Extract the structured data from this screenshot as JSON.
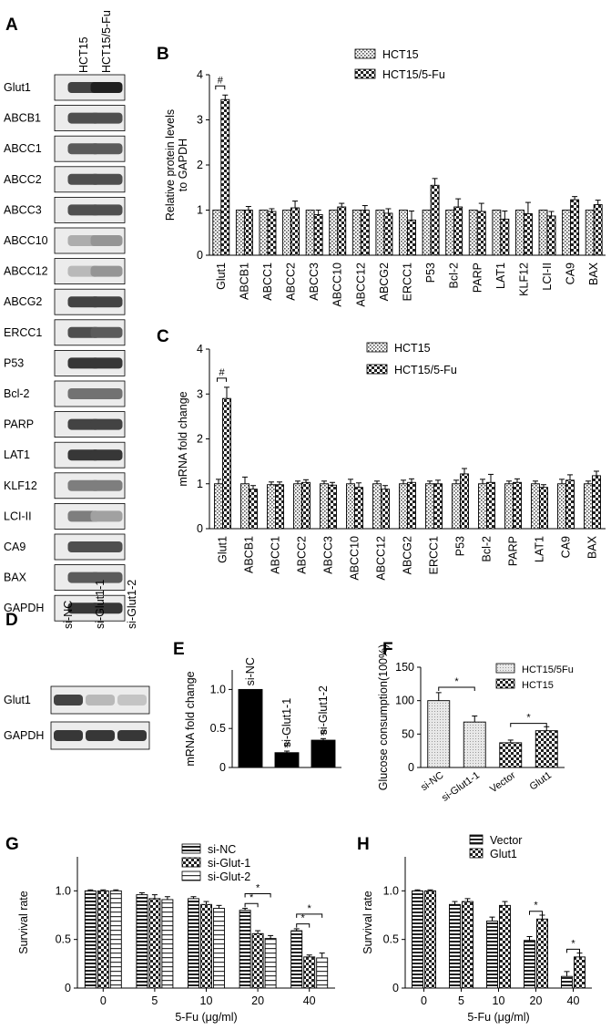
{
  "panels": {
    "A": "A",
    "B": "B",
    "C": "C",
    "D": "D",
    "E": "E",
    "F": "F",
    "G": "G",
    "H": "H"
  },
  "blot_A": {
    "columns": [
      "HCT15",
      "HCT15/5-Fu"
    ],
    "rows": [
      {
        "label": "Glut1",
        "i": [
          0.8,
          0.95
        ]
      },
      {
        "label": "ABCB1",
        "i": [
          0.75,
          0.75
        ]
      },
      {
        "label": "ABCC1",
        "i": [
          0.7,
          0.7
        ]
      },
      {
        "label": "ABCC2",
        "i": [
          0.75,
          0.75
        ]
      },
      {
        "label": "ABCC3",
        "i": [
          0.75,
          0.75
        ]
      },
      {
        "label": "ABCC10",
        "i": [
          0.35,
          0.45
        ]
      },
      {
        "label": "ABCC12",
        "i": [
          0.3,
          0.45
        ]
      },
      {
        "label": "ABCG2",
        "i": [
          0.8,
          0.8
        ]
      },
      {
        "label": "ERCC1",
        "i": [
          0.75,
          0.7
        ]
      },
      {
        "label": "P53",
        "i": [
          0.85,
          0.85
        ]
      },
      {
        "label": "Bcl-2",
        "i": [
          0.6,
          0.6
        ]
      },
      {
        "label": "PARP",
        "i": [
          0.8,
          0.8
        ]
      },
      {
        "label": "LAT1",
        "i": [
          0.85,
          0.85
        ]
      },
      {
        "label": "KLF12",
        "i": [
          0.55,
          0.55
        ]
      },
      {
        "label": "LCI-II",
        "i": [
          0.55,
          0.4
        ]
      },
      {
        "label": "CA9",
        "i": [
          0.75,
          0.75
        ]
      },
      {
        "label": "BAX",
        "i": [
          0.7,
          0.7
        ]
      },
      {
        "label": "GAPDH",
        "i": [
          0.85,
          0.85
        ]
      }
    ]
  },
  "blot_D": {
    "columns": [
      "si-NC",
      "si-Glut1-1",
      "si-Glut1-2"
    ],
    "rows": [
      {
        "label": "Glut1",
        "i": [
          0.8,
          0.3,
          0.25
        ]
      },
      {
        "label": "GAPDH",
        "i": [
          0.85,
          0.85,
          0.85
        ]
      }
    ]
  },
  "chart_data": [
    {
      "id": "B",
      "type": "bar",
      "ylabel": "Relative protein levels to GAPDH",
      "ylim": [
        0,
        4
      ],
      "yticks": [
        0,
        1,
        2,
        3,
        4
      ],
      "categories": [
        "Glut1",
        "ABCB1",
        "ABCC1",
        "ABCC2",
        "ABCC3",
        "ABCC10",
        "ABCC12",
        "ABCG2",
        "ERCC1",
        "P53",
        "Bcl-2",
        "PARP",
        "LAT1",
        "KLF12",
        "LCI-II",
        "CA9",
        "BAX"
      ],
      "series": [
        {
          "name": "HCT15",
          "values": [
            1,
            1,
            1,
            1,
            1,
            1,
            1,
            1,
            1,
            1,
            1,
            1,
            1,
            1,
            1,
            1,
            1
          ],
          "errors": [
            0,
            0,
            0,
            0,
            0,
            0,
            0,
            0,
            0,
            0,
            0,
            0,
            0,
            0,
            0,
            0,
            0
          ]
        },
        {
          "name": "HCT15/5-Fu",
          "values": [
            3.45,
            1.0,
            0.97,
            1.05,
            0.9,
            1.07,
            1.0,
            0.93,
            0.78,
            1.55,
            1.07,
            0.97,
            0.8,
            0.92,
            0.87,
            1.23,
            1.12
          ],
          "errors": [
            0.1,
            0.08,
            0.06,
            0.15,
            0.1,
            0.08,
            0.1,
            0.1,
            0.2,
            0.15,
            0.18,
            0.18,
            0.18,
            0.25,
            0.1,
            0.07,
            0.1
          ]
        }
      ],
      "annotations": [
        {
          "text": "#",
          "category": "Glut1"
        }
      ],
      "legend": "top-right"
    },
    {
      "id": "C",
      "type": "bar",
      "ylabel": "mRNA fold change",
      "ylim": [
        0,
        4
      ],
      "yticks": [
        0,
        1,
        2,
        3,
        4
      ],
      "categories": [
        "Glut1",
        "ABCB1",
        "ABCC1",
        "ABCC2",
        "ABCC3",
        "ABCC10",
        "ABCC12",
        "ABCG2",
        "ERCC1",
        "P53",
        "Bcl-2",
        "PARP",
        "LAT1",
        "CA9",
        "BAX"
      ],
      "series": [
        {
          "name": "HCT15",
          "values": [
            1.0,
            1.0,
            0.98,
            1.0,
            1.0,
            1.0,
            1.0,
            1.0,
            1.0,
            1.0,
            1.0,
            1.0,
            1.0,
            1.0,
            1.0
          ],
          "errors": [
            0.1,
            0.15,
            0.06,
            0.06,
            0.06,
            0.1,
            0.06,
            0.08,
            0.06,
            0.08,
            0.1,
            0.06,
            0.06,
            0.1,
            0.06
          ]
        },
        {
          "name": "HCT15/5-Fu",
          "values": [
            2.9,
            0.88,
            0.98,
            1.03,
            0.97,
            0.92,
            0.88,
            1.03,
            1.0,
            1.22,
            1.03,
            1.03,
            0.92,
            1.08,
            1.18
          ],
          "errors": [
            0.25,
            0.08,
            0.06,
            0.06,
            0.06,
            0.1,
            0.08,
            0.08,
            0.08,
            0.12,
            0.18,
            0.08,
            0.06,
            0.12,
            0.1
          ]
        }
      ],
      "annotations": [
        {
          "text": "#",
          "category": "Glut1"
        }
      ],
      "legend": "top-right"
    },
    {
      "id": "E",
      "type": "bar",
      "ylabel": "mRNA fold change",
      "ylim": [
        0,
        1.25
      ],
      "yticks": [
        0,
        0.5,
        1.0
      ],
      "tick_labels": [
        "0",
        "0.5",
        "1.0"
      ],
      "categories": [
        "si-NC",
        "si-Glut1-1",
        "si-Glut1-2"
      ],
      "series": [
        {
          "name": "",
          "values": [
            1.0,
            0.19,
            0.35
          ],
          "errors": [
            0,
            0.02,
            0.02
          ]
        }
      ],
      "annotations": [
        {
          "text": "#",
          "category": "si-Glut1-1"
        },
        {
          "text": "#",
          "category": "si-Glut1-2"
        }
      ]
    },
    {
      "id": "F",
      "type": "bar",
      "ylabel": "Glucose consumption(100%)",
      "ylim": [
        0,
        150
      ],
      "yticks": [
        0,
        50,
        100,
        150
      ],
      "categories": [
        "si-NC",
        "si-Glut1-1",
        "Vector",
        "Glut1"
      ],
      "series": [
        {
          "name": "HCT15/5Fu",
          "values": [
            100,
            68,
            null,
            null
          ],
          "errors": [
            12,
            9,
            0,
            0
          ]
        },
        {
          "name": "HCT15",
          "values": [
            null,
            null,
            37,
            55
          ],
          "errors": [
            0,
            0,
            4,
            6
          ]
        }
      ],
      "annotations": [
        {
          "text": "*",
          "between": [
            "si-NC",
            "si-Glut1-1"
          ]
        },
        {
          "text": "*",
          "between": [
            "Vector",
            "Glut1"
          ]
        }
      ],
      "legend": "top-right"
    },
    {
      "id": "G",
      "type": "bar",
      "xlabel": "5-Fu (μg/ml)",
      "ylabel": "Survival rate",
      "ylim": [
        0,
        1.35
      ],
      "yticks": [
        0,
        0.5,
        1.0
      ],
      "tick_labels": [
        "0",
        "0.5",
        "1.0"
      ],
      "categories": [
        "0",
        "5",
        "10",
        "20",
        "40"
      ],
      "series": [
        {
          "name": "si-NC",
          "values": [
            1.0,
            0.96,
            0.92,
            0.8,
            0.59
          ],
          "errors": [
            0.01,
            0.02,
            0.02,
            0.02,
            0.02
          ]
        },
        {
          "name": "si-Glut-1",
          "values": [
            1.0,
            0.92,
            0.86,
            0.56,
            0.32
          ],
          "errors": [
            0.01,
            0.04,
            0.03,
            0.03,
            0.02
          ]
        },
        {
          "name": "si-Glut-2",
          "values": [
            1.0,
            0.91,
            0.82,
            0.51,
            0.31
          ],
          "errors": [
            0.01,
            0.03,
            0.03,
            0.03,
            0.05
          ]
        }
      ],
      "annotations": [
        {
          "text": "*",
          "category": "20"
        },
        {
          "text": "*",
          "category": "20"
        },
        {
          "text": "*",
          "category": "40"
        },
        {
          "text": "*",
          "category": "40"
        }
      ],
      "legend": "top-right"
    },
    {
      "id": "H",
      "type": "bar",
      "xlabel": "5-Fu (μg/ml)",
      "ylabel": "Survival rate",
      "ylim": [
        0,
        1.35
      ],
      "yticks": [
        0,
        0.5,
        1.0
      ],
      "tick_labels": [
        "0",
        "0.5",
        "1.0"
      ],
      "categories": [
        "0",
        "5",
        "10",
        "20",
        "40"
      ],
      "series": [
        {
          "name": "Vector",
          "values": [
            1.0,
            0.86,
            0.69,
            0.49,
            0.12
          ],
          "errors": [
            0.01,
            0.03,
            0.04,
            0.04,
            0.05
          ]
        },
        {
          "name": "Glut1",
          "values": [
            1.0,
            0.89,
            0.85,
            0.71,
            0.32
          ],
          "errors": [
            0.01,
            0.03,
            0.04,
            0.04,
            0.04
          ]
        }
      ],
      "annotations": [
        {
          "text": "*",
          "category": "20"
        },
        {
          "text": "*",
          "category": "40"
        }
      ],
      "legend": "top"
    }
  ]
}
